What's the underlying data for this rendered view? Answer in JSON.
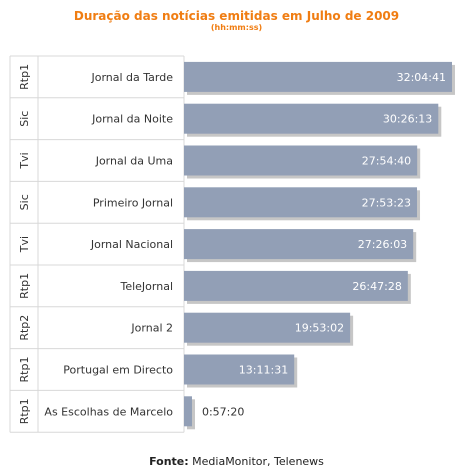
{
  "chart_data": {
    "type": "bar",
    "orientation": "horizontal",
    "title": "Duração das notícias emitidas em Julho de 2009",
    "subtitle": "(hh:mm:ss)",
    "grid": false,
    "categories": [
      {
        "channel": "Rtp1",
        "program": "Jornal da Tarde",
        "label": "32:04:41",
        "seconds": 115481
      },
      {
        "channel": "Sic",
        "program": "Jornal da Noite",
        "label": "30:26:13",
        "seconds": 109573
      },
      {
        "channel": "Tvi",
        "program": "Jornal da Uma",
        "label": "27:54:40",
        "seconds": 100480
      },
      {
        "channel": "Sic",
        "program": "Primeiro Jornal",
        "label": "27:53:23",
        "seconds": 100403
      },
      {
        "channel": "Tvi",
        "program": "Jornal Nacional",
        "label": "27:26:03",
        "seconds": 98763
      },
      {
        "channel": "Rtp1",
        "program": "TeleJornal",
        "label": "26:47:28",
        "seconds": 96448
      },
      {
        "channel": "Rtp2",
        "program": "Jornal 2",
        "label": "19:53:02",
        "seconds": 71582
      },
      {
        "channel": "Rtp1",
        "program": "Portugal em Directo",
        "label": "13:11:31",
        "seconds": 47491
      },
      {
        "channel": "Rtp1",
        "program": "As Escolhas de Marcelo",
        "label": "0:57:20",
        "seconds": 3440
      }
    ],
    "colors": {
      "bar": "#929fb6",
      "bar_shadow": "#c6c6c6",
      "title": "#f07d12",
      "row_divider": "#d8d8d8",
      "text": "#333333"
    }
  },
  "source": {
    "label": "Fonte:",
    "text": "MediaMonitor, Telenews"
  }
}
